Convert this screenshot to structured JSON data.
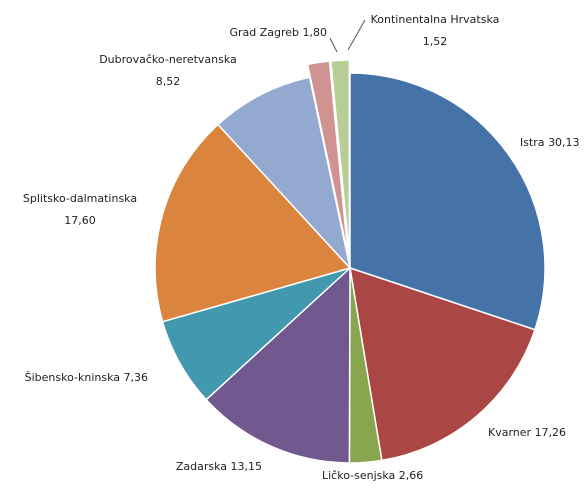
{
  "chart_data": {
    "type": "pie",
    "categories": [
      "Istra",
      "Kvarner",
      "Ličko-senjska",
      "Zadarska",
      "Šibensko-kninska",
      "Splitsko-dalmatinska",
      "Dubrovačko-neretvanska",
      "Grad Zagreb",
      "Kontinentalna Hrvatska"
    ],
    "values": [
      30.13,
      17.26,
      2.66,
      13.15,
      7.36,
      17.6,
      8.52,
      1.8,
      1.52
    ],
    "value_labels": [
      "30,13",
      "17,26",
      "2,66",
      "13,15",
      "7,36",
      "17,60",
      "8,52",
      "1,80",
      "1,52"
    ],
    "colors": [
      "#4572a7",
      "#aa4643",
      "#89a54e",
      "#71588f",
      "#4198af",
      "#db843d",
      "#93a9cf",
      "#d19392",
      "#b9cd96"
    ],
    "explode": [
      false,
      false,
      false,
      false,
      false,
      false,
      false,
      true,
      true
    ]
  }
}
